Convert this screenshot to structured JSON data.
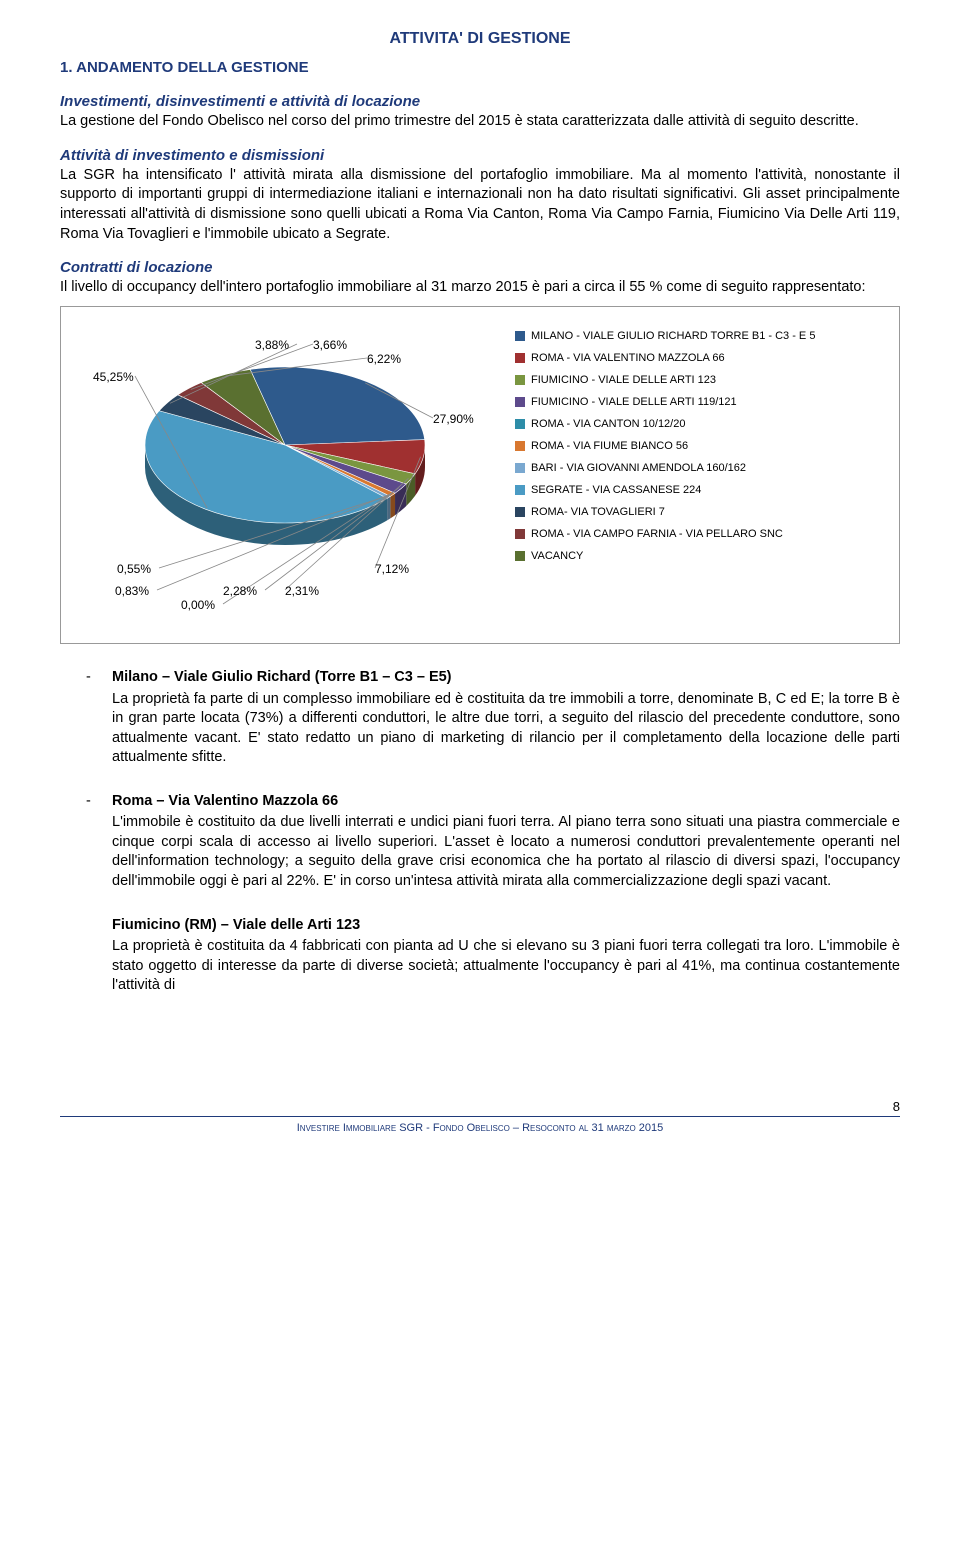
{
  "title": "ATTIVITA' DI GESTIONE",
  "section1_heading": "1. ANDAMENTO DELLA GESTIONE",
  "investimenti": {
    "heading": "Investimenti, disinvestimenti e attività di locazione",
    "body": "La gestione del Fondo Obelisco nel corso del primo trimestre del 2015 è stata caratterizzata dalle attività di seguito descritte."
  },
  "attivita": {
    "heading": "Attività di investimento e dismissioni",
    "body": "La SGR  ha intensificato l' attività  mirata alla dismissione del portafoglio immobiliare. Ma al momento l'attività, nonostante il supporto di importanti gruppi di intermediazione italiani e internazionali non ha dato risultati significativi. Gli asset principalmente interessati all'attività di dismissione sono quelli ubicati a  Roma Via Canton, Roma Via Campo Farnia, Fiumicino Via Delle Arti 119,  Roma Via Tovaglieri e l'immobile ubicato a Segrate."
  },
  "contratti": {
    "heading": "Contratti di locazione",
    "body": "Il livello di occupancy dell'intero portafoglio immobiliare al 31 marzo 2015 è pari a circa il 55 % come di seguito rappresentato:"
  },
  "chart": {
    "type": "pie",
    "background_color": "#ffffff",
    "label_fontsize": 12,
    "legend_fontsize": 11,
    "slices": [
      {
        "label": "MILANO - VIALE GIULIO RICHARD TORRE B1 - C3 - E 5",
        "value": 27.9,
        "color": "#2e5a8c",
        "display": "27,90%"
      },
      {
        "label": "ROMA - VIA VALENTINO MAZZOLA 66",
        "value": 7.12,
        "color": "#a03030",
        "display": "7,12%"
      },
      {
        "label": "FIUMICINO - VIALE DELLE ARTI 123",
        "value": 2.31,
        "color": "#7a9640",
        "display": "2,31%"
      },
      {
        "label": "FIUMICINO - VIALE DELLE ARTI 119/121",
        "value": 2.28,
        "color": "#5d4a8c",
        "display": "2,28%"
      },
      {
        "label": "ROMA - VIA CANTON 10/12/20",
        "value": 0.0,
        "color": "#2d8da8",
        "display": "0,00%"
      },
      {
        "label": "ROMA - VIA FIUME BIANCO 56",
        "value": 0.83,
        "color": "#d87830",
        "display": "0,83%"
      },
      {
        "label": "BARI - VIA GIOVANNI AMENDOLA 160/162",
        "value": 0.55,
        "color": "#7aa8d0",
        "display": "0,55%"
      },
      {
        "label": "SEGRATE - VIA CASSANESE 224",
        "value": 45.25,
        "color": "#4a9bc4",
        "display": "45,25%"
      },
      {
        "label": "ROMA- VIA TOVAGLIERI 7",
        "value": 3.88,
        "color": "#2a4560",
        "display": "3,88%"
      },
      {
        "label": "ROMA - VIA CAMPO FARNIA - VIA PELLARO SNC",
        "value": 3.66,
        "color": "#803838",
        "display": "3,66%"
      },
      {
        "label": "VACANCY",
        "value": 6.22,
        "color": "#5a7030",
        "display": "6,22%"
      }
    ]
  },
  "properties": [
    {
      "title": "Milano – Viale Giulio Richard (Torre B1 – C3 – E5)",
      "body": "La proprietà fa parte di un complesso immobiliare ed è costituita da tre immobili a torre, denominate B, C ed E; la torre B è in gran parte locata (73%) a differenti conduttori, le altre due torri, a seguito del rilascio del precedente conduttore, sono attualmente vacant. E' stato redatto un piano di marketing di rilancio per il completamento della locazione delle parti attualmente sfitte."
    },
    {
      "title": "Roma – Via Valentino Mazzola 66",
      "body": "L'immobile è costituito da due livelli interrati e undici piani fuori terra. Al piano terra sono situati  una piastra commerciale e cinque corpi scala di accesso ai livello superiori. L'asset è locato a numerosi conduttori prevalentemente operanti nel dell'information technology; a seguito della grave crisi economica che ha portato al rilascio di diversi spazi, l'occupancy dell'immobile oggi è pari al 22%. E' in corso un'intesa attività mirata alla commercializzazione degli spazi vacant."
    },
    {
      "title": "Fiumicino (RM) – Viale delle Arti 123",
      "body": "La proprietà è costituita da 4 fabbricati con pianta ad U che si elevano su 3 piani fuori terra collegati tra loro. L'immobile è stato oggetto di interesse da parte di diverse società; attualmente l'occupancy è pari al 41%, ma continua costantemente l'attività di"
    }
  ],
  "footer": {
    "text": "Investire Immobiliare SGR - Fondo Obelisco – Resoconto al 31 marzo 2015",
    "page": "8"
  }
}
